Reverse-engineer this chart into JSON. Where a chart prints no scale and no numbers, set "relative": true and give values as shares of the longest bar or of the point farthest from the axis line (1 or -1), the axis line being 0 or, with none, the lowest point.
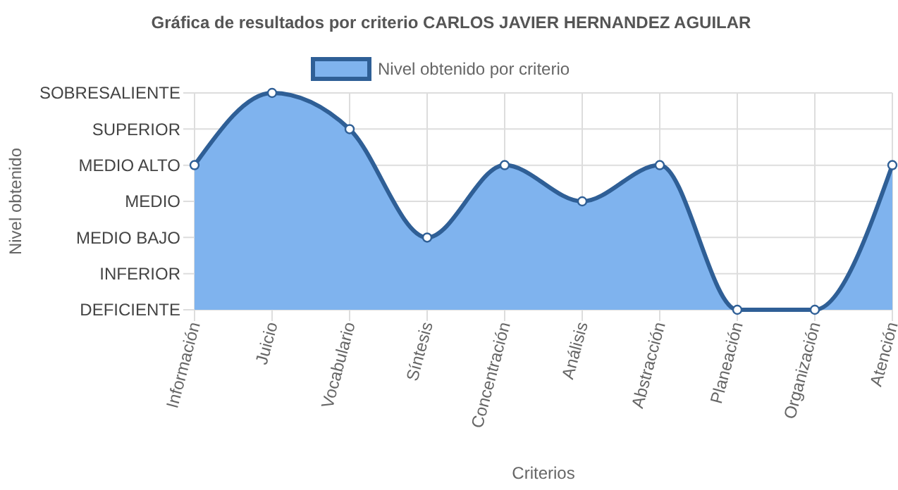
{
  "chart_data": {
    "type": "area",
    "title": "Gráfica de resultados por criterio CARLOS JAVIER HERNANDEZ AGUILAR",
    "xlabel": "Criterios",
    "categories": [
      "Información",
      "Juicio",
      "Vocabulario",
      "Síntesis",
      "Concentración",
      "Análisis",
      "Abstracción",
      "Planeación",
      "Organización",
      "Atención"
    ],
    "relative": true,
    "annotations": [
      "SOBRESALIENTE",
      "SUPERIOR",
      "MEDIO ALTO",
      "MEDIO",
      "MEDIO BAJO",
      "INFERIOR",
      "DEFICIENTE",
      "Nivel obtenido"
    ],
    "series": [
      {
        "name": "Nivel obtenido por criterio",
        "color": "#2f5f96",
        "values": [
          0.667,
          1,
          0.833,
          0.333,
          0.667,
          0.5,
          0.667,
          0,
          0,
          0.667
        ]
      }
    ],
    "grid": true,
    "legend": "top",
    "marker": "circle"
  }
}
